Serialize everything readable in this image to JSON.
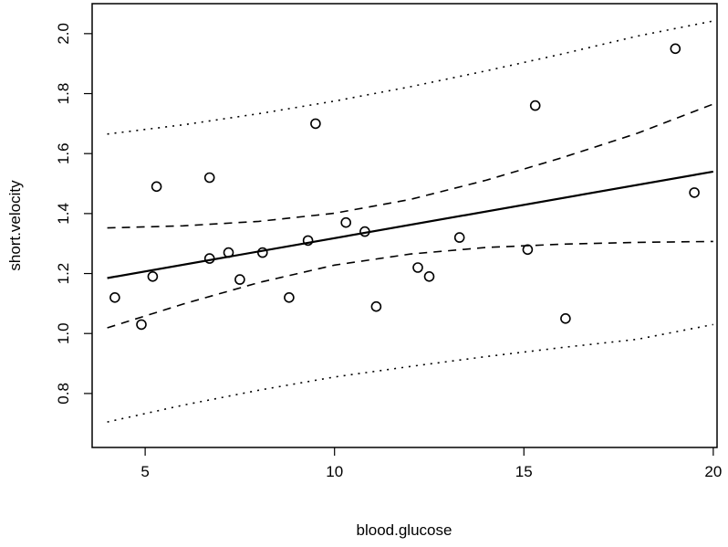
{
  "chart_data": {
    "type": "scatter",
    "title": "",
    "xlabel": "blood.glucose",
    "ylabel": "short.velocity",
    "xlim": [
      3.6,
      20.1
    ],
    "ylim": [
      0.62,
      2.1
    ],
    "x_ticks": [
      5,
      10,
      15,
      20
    ],
    "y_ticks": [
      0.8,
      1.0,
      1.2,
      1.4,
      1.6,
      1.8,
      2.0
    ],
    "grid": false,
    "legend": "none",
    "points": [
      {
        "x": 4.2,
        "y": 1.12
      },
      {
        "x": 4.9,
        "y": 1.03
      },
      {
        "x": 5.2,
        "y": 1.19
      },
      {
        "x": 5.3,
        "y": 1.49
      },
      {
        "x": 6.7,
        "y": 1.52
      },
      {
        "x": 6.7,
        "y": 1.25
      },
      {
        "x": 7.2,
        "y": 1.27
      },
      {
        "x": 7.5,
        "y": 1.18
      },
      {
        "x": 8.1,
        "y": 1.27
      },
      {
        "x": 8.8,
        "y": 1.12
      },
      {
        "x": 9.3,
        "y": 1.31
      },
      {
        "x": 9.5,
        "y": 1.7
      },
      {
        "x": 10.3,
        "y": 1.37
      },
      {
        "x": 10.8,
        "y": 1.34
      },
      {
        "x": 11.1,
        "y": 1.09
      },
      {
        "x": 12.2,
        "y": 1.22
      },
      {
        "x": 12.5,
        "y": 1.19
      },
      {
        "x": 13.3,
        "y": 1.32
      },
      {
        "x": 15.1,
        "y": 1.28
      },
      {
        "x": 15.3,
        "y": 1.76
      },
      {
        "x": 16.1,
        "y": 1.05
      },
      {
        "x": 19.0,
        "y": 1.95
      },
      {
        "x": 19.5,
        "y": 1.47
      }
    ],
    "lines": [
      {
        "style": "solid",
        "x": [
          4.0,
          20.0
        ],
        "y": [
          1.185,
          1.54
        ]
      },
      {
        "style": "dashed",
        "x": [
          4,
          6,
          8,
          10,
          12,
          14,
          16,
          18,
          20
        ],
        "y": [
          1.352,
          1.359,
          1.374,
          1.401,
          1.447,
          1.511,
          1.586,
          1.668,
          1.765
        ]
      },
      {
        "style": "dashed",
        "x": [
          4,
          6,
          8,
          10,
          12,
          14,
          16,
          18,
          20
        ],
        "y": [
          1.019,
          1.098,
          1.17,
          1.228,
          1.265,
          1.287,
          1.298,
          1.304,
          1.307
        ]
      },
      {
        "style": "dotted",
        "x": [
          4,
          6,
          8,
          10,
          12,
          14,
          16,
          18,
          20
        ],
        "y": [
          1.665,
          1.696,
          1.733,
          1.775,
          1.823,
          1.876,
          1.932,
          1.992,
          2.042
        ]
      },
      {
        "style": "dotted",
        "x": [
          4,
          6,
          8,
          10,
          12,
          14,
          16,
          18,
          20
        ],
        "y": [
          0.705,
          0.761,
          0.811,
          0.855,
          0.89,
          0.923,
          0.953,
          0.981,
          1.03
        ]
      }
    ]
  }
}
